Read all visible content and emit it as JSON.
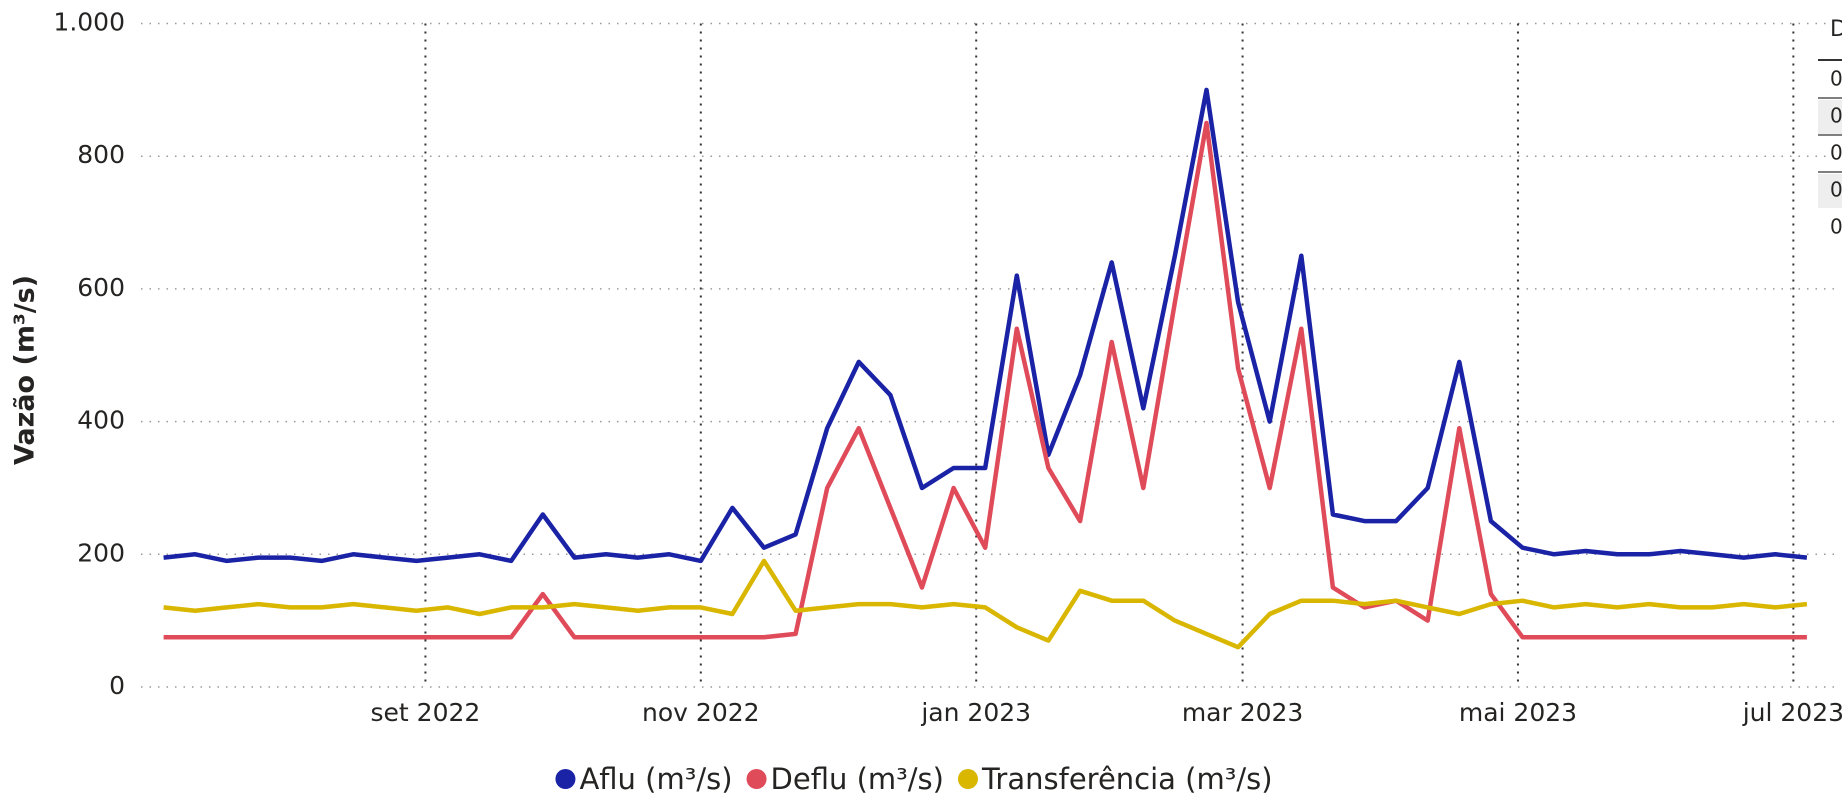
{
  "chart_data": {
    "type": "line",
    "y_label": "Vazão (m³/s)",
    "x": [
      "2022-07-05",
      "2022-07-12",
      "2022-07-19",
      "2022-07-26",
      "2022-08-02",
      "2022-08-09",
      "2022-08-16",
      "2022-08-23",
      "2022-08-30",
      "2022-09-06",
      "2022-09-13",
      "2022-09-20",
      "2022-09-27",
      "2022-10-04",
      "2022-10-11",
      "2022-10-18",
      "2022-10-25",
      "2022-11-01",
      "2022-11-08",
      "2022-11-15",
      "2022-11-22",
      "2022-11-29",
      "2022-12-06",
      "2022-12-13",
      "2022-12-20",
      "2022-12-27",
      "2023-01-03",
      "2023-01-10",
      "2023-01-17",
      "2023-01-24",
      "2023-01-31",
      "2023-02-07",
      "2023-02-14",
      "2023-02-21",
      "2023-02-28",
      "2023-03-07",
      "2023-03-14",
      "2023-03-21",
      "2023-03-28",
      "2023-04-04",
      "2023-04-11",
      "2023-04-18",
      "2023-04-25",
      "2023-05-02",
      "2023-05-09",
      "2023-05-16",
      "2023-05-23",
      "2023-05-30",
      "2023-06-06",
      "2023-06-13",
      "2023-06-20",
      "2023-06-27",
      "2023-07-04"
    ],
    "series": [
      {
        "name": "Aflu (m³/s)",
        "color": "#1a23a6",
        "values": [
          195,
          200,
          190,
          195,
          195,
          190,
          200,
          195,
          190,
          195,
          200,
          190,
          260,
          195,
          200,
          195,
          200,
          190,
          270,
          210,
          230,
          390,
          490,
          440,
          300,
          330,
          330,
          620,
          350,
          470,
          640,
          420,
          650,
          900,
          580,
          400,
          650,
          260,
          250,
          250,
          300,
          490,
          250,
          210,
          200,
          205,
          200,
          200,
          205,
          200,
          195,
          200,
          195
        ]
      },
      {
        "name": "Deflu (m³/s)",
        "color": "#e04b5a",
        "values": [
          75,
          75,
          75,
          75,
          75,
          75,
          75,
          75,
          75,
          75,
          75,
          75,
          140,
          75,
          75,
          75,
          75,
          75,
          75,
          75,
          80,
          300,
          390,
          270,
          150,
          300,
          210,
          540,
          330,
          250,
          520,
          300,
          580,
          850,
          480,
          300,
          540,
          150,
          120,
          130,
          100,
          390,
          140,
          75,
          75,
          75,
          75,
          75,
          75,
          75,
          75,
          75,
          75
        ]
      },
      {
        "name": "Transferência (m³/s)",
        "color": "#d9b600",
        "values": [
          120,
          115,
          120,
          125,
          120,
          120,
          125,
          120,
          115,
          120,
          110,
          120,
          120,
          125,
          120,
          115,
          120,
          120,
          110,
          190,
          115,
          120,
          125,
          125,
          120,
          125,
          120,
          90,
          70,
          145,
          130,
          130,
          100,
          80,
          60,
          110,
          130,
          130,
          125,
          130,
          120,
          110,
          125,
          130,
          120,
          125,
          120,
          125,
          120,
          120,
          125,
          120,
          125
        ]
      }
    ],
    "xlim": [
      "2022-06-30",
      "2023-07-10"
    ],
    "xticks": [
      {
        "value": "2022-09-01",
        "label": "set 2022"
      },
      {
        "value": "2022-11-01",
        "label": "nov 2022"
      },
      {
        "value": "2023-01-01",
        "label": "jan 2023"
      },
      {
        "value": "2023-03-01",
        "label": "mar 2023"
      },
      {
        "value": "2023-05-01",
        "label": "mai 2023"
      },
      {
        "value": "2023-07-01",
        "label": "jul 2023"
      }
    ],
    "ylim": [
      0,
      1000
    ],
    "yticks": [
      0,
      200,
      400,
      600,
      800,
      {
        "value": 1000,
        "label": "1.000"
      }
    ],
    "grid": true
  },
  "side_table": {
    "header": "D",
    "rows": [
      "0",
      "0",
      "0",
      "0",
      "0"
    ]
  }
}
